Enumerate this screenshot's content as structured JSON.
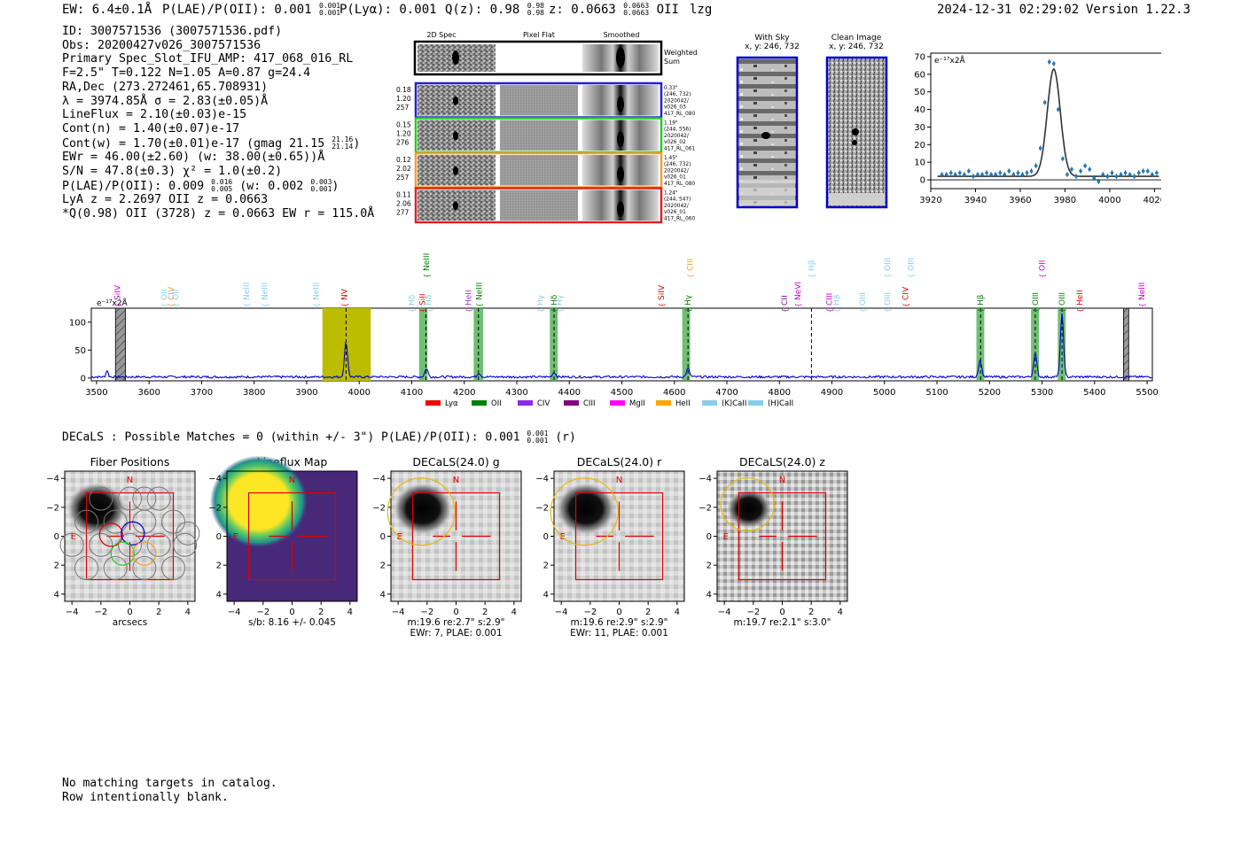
{
  "header": {
    "ew_text": "EW: 6.4±0.1Å",
    "plae_text": "P(LAE)/P(OII): 0.001",
    "plae_sup": "0.001",
    "plae_sub": "0.001",
    "plya_text": "P(Lyα): 0.001",
    "q_text": "Q(z): 0.98",
    "q_sup": "0.98",
    "q_sub": "0.98",
    "z_text": "z: 0.0663",
    "z_sup": "0.0663",
    "z_sub": "0.0663",
    "line_name": "OII",
    "tag": "lzg",
    "datetime": "2024-12-31 02:29:02",
    "version": "Version 1.22.3"
  },
  "info": {
    "id": "ID: 3007571536 (3007571536.pdf)",
    "obs": "Obs: 20200427v026_3007571536",
    "primary": "Primary Spec_Slot_IFU_AMP: 417_068_016_RL",
    "params": "F=2.5\"  T=0.122  N=1.05  A=0.87  g=24.4",
    "radec": "RA,Dec (273.272461,65.708931)",
    "lambda": "λ = 3974.85Å  σ = 2.83(±0.05)Å",
    "lineflux": "LineFlux = 2.10(±0.03)e-15",
    "contn": "Cont(n) = 1.40(±0.07)e-17",
    "contw": "Cont(w) = 1.70(±0.01)e-17 (gmag 21.15",
    "contw_sup": "21.16",
    "contw_sub": "21.14",
    "ewr": "EWr = 46.00(±2.60) (w: 38.00(±0.65))Å",
    "sn": "S/N = 47.8(±0.3)  χ² = 1.0(±0.2)",
    "plae": "P(LAE)/P(OII): 0.009",
    "plae_sup": "0.016",
    "plae_sub": "0.005",
    "plae_w": "(w: 0.002",
    "plae_w_sup": "0.003",
    "plae_w_sub": "0.001",
    "lya": "LyA z = 2.2697  OII z = 0.0663",
    "q": "*Q(0.98) OII (3728) z = 0.0663  EW r = 115.0Å"
  },
  "cutouts": {
    "col_titles": [
      "2D Spec",
      "Pixel Flat",
      "Smoothed"
    ],
    "weighted_label": "Weighted\nSum",
    "rows": [
      {
        "left": [
          "0.18",
          "1.20",
          "257"
        ],
        "right": [
          "0.33\"",
          "(246, 732)",
          "2020042/",
          "v026_03",
          "417_RL_080"
        ],
        "color": "#2222cc"
      },
      {
        "left": [
          "0.15",
          "1.20",
          "276"
        ],
        "right": [
          "1.19\"",
          "(244, 556)",
          "2020042/",
          "v026_02",
          "417_RL_061"
        ],
        "color": "#22cc22"
      },
      {
        "left": [
          "0.12",
          "2.02",
          "257"
        ],
        "right": [
          "1.45\"",
          "(246, 732)",
          "2020042/",
          "v026_01",
          "417_RL_080"
        ],
        "color": "#f0a030"
      },
      {
        "left": [
          "0.11",
          "2.06",
          "277"
        ],
        "right": [
          "1.24\"",
          "(244, 547)",
          "2020042/",
          "v026_01",
          "417_RL_060"
        ],
        "color": "#dd2222"
      }
    ],
    "with_sky_title": "With Sky",
    "with_sky_xy": "x, y: 246, 732",
    "clean_title": "Clean Image",
    "clean_xy": "x, y: 246, 732"
  },
  "colors": {
    "blue": "#0000cc",
    "fit": "#1f77b4",
    "yellow_band": "#bcbc00",
    "green_band": "#4caf50",
    "red_box": "#dd0000",
    "gold_ellipse": "#e8b800"
  },
  "chart_data": [
    {
      "name": "zoom-line-fit",
      "type": "scatter",
      "ylabel_text": "e⁻¹⁷x2Å",
      "xlim": [
        3920,
        4025
      ],
      "ylim": [
        -5,
        72
      ],
      "xticks": [
        3920,
        3940,
        3960,
        3980,
        4000,
        4020
      ],
      "yticks": [
        0,
        10,
        20,
        30,
        40,
        50,
        60,
        70
      ],
      "fit_peak": 61,
      "fit_center": 3975,
      "fit_sigma": 2.9,
      "fit_baseline": 2,
      "points_x": [
        3925,
        3927,
        3929,
        3931,
        3933,
        3935,
        3937,
        3939,
        3941,
        3943,
        3945,
        3947,
        3949,
        3951,
        3953,
        3955,
        3957,
        3959,
        3961,
        3963,
        3965,
        3967,
        3969,
        3971,
        3973,
        3975,
        3977,
        3979,
        3981,
        3983,
        3985,
        3987,
        3989,
        3991,
        3993,
        3995,
        3997,
        3999,
        4001,
        4003,
        4005,
        4007,
        4009,
        4011,
        4013,
        4015,
        4017,
        4019,
        4021
      ],
      "points_y": [
        3,
        3,
        4,
        3,
        4,
        3,
        5,
        2,
        3,
        3,
        4,
        3,
        3,
        4,
        3,
        5,
        3,
        4,
        3,
        4,
        5,
        8,
        18,
        44,
        67,
        66,
        40,
        12,
        3,
        6,
        2,
        5,
        8,
        6,
        1,
        -1,
        3,
        2,
        4,
        2,
        3,
        4,
        3,
        2,
        4,
        5,
        5,
        3,
        4
      ]
    },
    {
      "name": "full-spectrum",
      "type": "line",
      "ylabel_text": "e⁻¹⁷x2Å",
      "xlim": [
        3490,
        5510
      ],
      "ylim": [
        -5,
        125
      ],
      "xticks": [
        3500,
        3600,
        3700,
        3800,
        3900,
        4000,
        4100,
        4200,
        4300,
        4400,
        4500,
        4600,
        4700,
        4800,
        4900,
        5000,
        5100,
        5200,
        5300,
        5400,
        5500
      ],
      "yticks": [
        0,
        50,
        100
      ],
      "continuum": 2,
      "peaks": [
        {
          "x": 3975,
          "amp": 62,
          "sigma": 3
        },
        {
          "x": 3520,
          "amp": 12,
          "sigma": 2
        },
        {
          "x": 4128,
          "amp": 15,
          "sigma": 3
        },
        {
          "x": 4228,
          "amp": 7,
          "sigma": 3
        },
        {
          "x": 4371,
          "amp": 8,
          "sigma": 3
        },
        {
          "x": 4626,
          "amp": 15,
          "sigma": 3
        },
        {
          "x": 5182,
          "amp": 30,
          "sigma": 3
        },
        {
          "x": 5287,
          "amp": 42,
          "sigma": 3
        },
        {
          "x": 5338,
          "amp": 112,
          "sigma": 3
        }
      ],
      "yellow_band": [
        3930,
        4022
      ],
      "green_bands": [
        [
          4114,
          4130
        ],
        [
          4218,
          4236
        ],
        [
          4363,
          4378
        ],
        [
          4615,
          4630
        ],
        [
          5175,
          5190
        ],
        [
          5279,
          5294
        ],
        [
          5330,
          5345
        ]
      ],
      "hatched": [
        [
          3536,
          3555
        ],
        [
          5455,
          5465
        ]
      ],
      "dashed_lines": [
        3975,
        4127,
        4227,
        4371,
        4626,
        4861,
        5183,
        5287,
        5338
      ],
      "line_labels": [
        {
          "x": 3540,
          "text": "SiIV",
          "color": "#cc00cc",
          "row": 1
        },
        {
          "x": 3628,
          "text": "OII",
          "color": "#87ceeb",
          "row": 1
        },
        {
          "x": 3642,
          "text": "CIV",
          "color": "#f0a030",
          "row": 1
        },
        {
          "x": 3650,
          "text": "OII",
          "color": "#87ceeb",
          "row": 1
        },
        {
          "x": 3785,
          "text": "NeIII",
          "color": "#87ceeb",
          "row": 1
        },
        {
          "x": 3820,
          "text": "NeIII",
          "color": "#87ceeb",
          "row": 1
        },
        {
          "x": 3918,
          "text": "NeIII",
          "color": "#87ceeb",
          "row": 1
        },
        {
          "x": 3972,
          "text": "NV",
          "color": "#dd0000",
          "row": 1
        },
        {
          "x": 4100,
          "text": "Hδ",
          "color": "#87ceeb",
          "row": 2
        },
        {
          "x": 4120,
          "text": "SiII",
          "color": "#dd0000",
          "row": 2
        },
        {
          "x": 4132,
          "text": "Hδ",
          "color": "#87ceeb",
          "row": 2
        },
        {
          "x": 4128,
          "text": "NeIII",
          "color": "#008000",
          "row": 0
        },
        {
          "x": 4208,
          "text": "HeII",
          "color": "#9933cc",
          "row": 2
        },
        {
          "x": 4228,
          "text": "NeIII",
          "color": "#008000",
          "row": 1
        },
        {
          "x": 4345,
          "text": "Hγ",
          "color": "#87ceeb",
          "row": 2
        },
        {
          "x": 4371,
          "text": "Hδ",
          "color": "#008000",
          "row": 2
        },
        {
          "x": 4381,
          "text": "Hγ",
          "color": "#87ceeb",
          "row": 2
        },
        {
          "x": 4575,
          "text": "SiIV",
          "color": "#dd0000",
          "row": 1
        },
        {
          "x": 4626,
          "text": "Hγ",
          "color": "#008000",
          "row": 2
        },
        {
          "x": 4630,
          "text": "CIII",
          "color": "#f0a030",
          "row": 0
        },
        {
          "x": 4810,
          "text": "CII",
          "color": "#800080",
          "row": 2
        },
        {
          "x": 4835,
          "text": "NeVI",
          "color": "#cc00cc",
          "row": 1
        },
        {
          "x": 4861,
          "text": "Hβ",
          "color": "#87ceeb",
          "row": 0
        },
        {
          "x": 4895,
          "text": "CIII",
          "color": "#cc00cc",
          "row": 2
        },
        {
          "x": 4908,
          "text": "Hβ",
          "color": "#87ceeb",
          "row": 2
        },
        {
          "x": 4958,
          "text": "OIII",
          "color": "#87ceeb",
          "row": 2
        },
        {
          "x": 5005,
          "text": "OIII",
          "color": "#87ceeb",
          "row": 2
        },
        {
          "x": 5005,
          "text": "OIII",
          "color": "#87ceeb",
          "row": 0
        },
        {
          "x": 5050,
          "text": "OIII",
          "color": "#87ceeb",
          "row": 0
        },
        {
          "x": 5040,
          "text": "CIV",
          "color": "#dd0000",
          "row": 1
        },
        {
          "x": 5183,
          "text": "Hβ",
          "color": "#008000",
          "row": 2
        },
        {
          "x": 5287,
          "text": "OIII",
          "color": "#008000",
          "row": 2
        },
        {
          "x": 5300,
          "text": "OII",
          "color": "#cc00cc",
          "row": 0
        },
        {
          "x": 5338,
          "text": "OIII",
          "color": "#008000",
          "row": 2
        },
        {
          "x": 5372,
          "text": "HeII",
          "color": "#dd0000",
          "row": 2
        },
        {
          "x": 5490,
          "text": "NeIII",
          "color": "#cc00cc",
          "row": 1
        }
      ],
      "legend": [
        {
          "label": "Lyα",
          "color": "#ee0000"
        },
        {
          "label": "OII",
          "color": "#008000"
        },
        {
          "label": "CIV",
          "color": "#8a2be2"
        },
        {
          "label": "CIII",
          "color": "#800080"
        },
        {
          "label": "MgII",
          "color": "#ff00ff"
        },
        {
          "label": "HeII",
          "color": "#ffa500"
        },
        {
          "label": "(K)CaII",
          "color": "#87ceeb"
        },
        {
          "label": "(H)CaII",
          "color": "#87ceeb"
        }
      ]
    }
  ],
  "decals": {
    "summary": "DECaLS : Possible Matches = 0 (within +/- 3\")  P(LAE)/P(OII): 0.001",
    "summary_sup": "0.001",
    "summary_sub": "0.001",
    "summary_band": "(r)",
    "xticks": [
      "−4",
      "−2",
      "0",
      "2",
      "4"
    ],
    "yticks": [
      "4",
      "2",
      "0",
      "−2",
      "−4"
    ],
    "north": "N",
    "east": "E",
    "panels": [
      {
        "title": "Fiber Positions",
        "caption1": "arcsecs",
        "caption2": ""
      },
      {
        "title": "Lineflux Map",
        "caption1": "s/b: 8.16 +/- 0.045",
        "caption2": ""
      },
      {
        "title": "DECaLS(24.0) g",
        "caption1": "m:19.6  re:2.7\"  s:2.9\"",
        "caption2": "EWr: 7, PLAE: 0.001"
      },
      {
        "title": "DECaLS(24.0) r",
        "caption1": "m:19.6  re:2.9\"  s:2.9\"",
        "caption2": "EWr: 11, PLAE: 0.001"
      },
      {
        "title": "DECaLS(24.0) z",
        "caption1": "m:19.7  re:2.1\"  s:3.0\"",
        "caption2": ""
      }
    ]
  },
  "footer": {
    "line1": "No matching targets in catalog.",
    "line2": "Row intentionally blank."
  }
}
